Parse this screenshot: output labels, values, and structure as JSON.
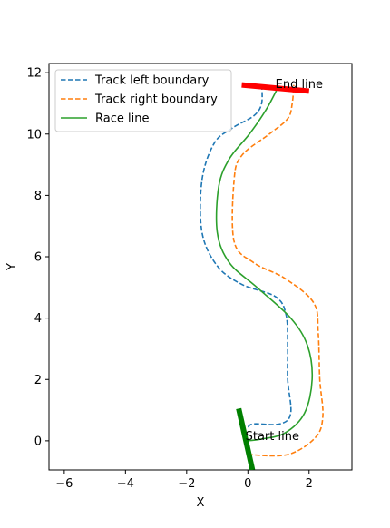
{
  "chart_data": {
    "type": "line",
    "title": "",
    "xlabel": "X",
    "ylabel": "Y",
    "xlim": [
      -6.5,
      3.4
    ],
    "ylim": [
      -0.95,
      12.3
    ],
    "xticks": [
      -6,
      -4,
      -2,
      0,
      2
    ],
    "yticks": [
      0,
      2,
      4,
      6,
      8,
      10,
      12
    ],
    "grid": false,
    "legend_position": "upper-left",
    "series": [
      {
        "name": "Track left boundary",
        "color": "#1f77b4",
        "style": "dashed",
        "x": [
          0.0,
          0.2,
          1.05,
          1.4,
          1.3,
          1.3,
          1.25,
          0.9,
          -0.2,
          -1.0,
          -1.5,
          -1.5,
          -1.1,
          -0.5,
          0.2,
          0.45,
          0.45
        ],
        "y": [
          0.45,
          0.55,
          0.55,
          0.9,
          2.0,
          3.0,
          4.1,
          4.7,
          5.1,
          5.7,
          6.8,
          8.5,
          9.7,
          10.2,
          10.6,
          11.0,
          11.65
        ]
      },
      {
        "name": "Track right boundary",
        "color": "#ff7f0e",
        "style": "dashed",
        "x": [
          0.0,
          1.3,
          2.2,
          2.45,
          2.35,
          2.3,
          2.15,
          1.2,
          0.2,
          -0.45,
          -0.45,
          -0.2,
          0.7,
          1.3,
          1.45,
          1.5
        ],
        "y": [
          -0.45,
          -0.45,
          0.1,
          0.8,
          2.0,
          3.5,
          4.5,
          5.3,
          5.8,
          6.5,
          8.5,
          9.3,
          10.0,
          10.5,
          11.0,
          11.6
        ]
      },
      {
        "name": "Race line",
        "color": "#2ca02c",
        "style": "solid",
        "x": [
          -0.05,
          0.4,
          1.2,
          1.85,
          2.1,
          1.95,
          1.4,
          0.3,
          -0.6,
          -1.0,
          -0.95,
          -0.6,
          0.05,
          0.6,
          1.0
        ],
        "y": [
          0.0,
          0.05,
          0.25,
          0.9,
          2.0,
          3.1,
          4.0,
          5.0,
          5.8,
          6.8,
          8.3,
          9.2,
          10.0,
          10.8,
          11.55
        ]
      }
    ],
    "annotations": [
      {
        "text": "Start line",
        "x": -0.08,
        "y": 0.02
      },
      {
        "text": "End line",
        "x": 0.9,
        "y": 11.5
      }
    ],
    "markers": [
      {
        "name": "start-line",
        "color": "#008000",
        "x": [
          -0.3,
          0.15
        ],
        "y": [
          1.05,
          -0.95
        ]
      },
      {
        "name": "end-line",
        "color": "#ff0000",
        "x": [
          -0.2,
          2.0
        ],
        "y": [
          11.6,
          11.4
        ]
      }
    ]
  }
}
